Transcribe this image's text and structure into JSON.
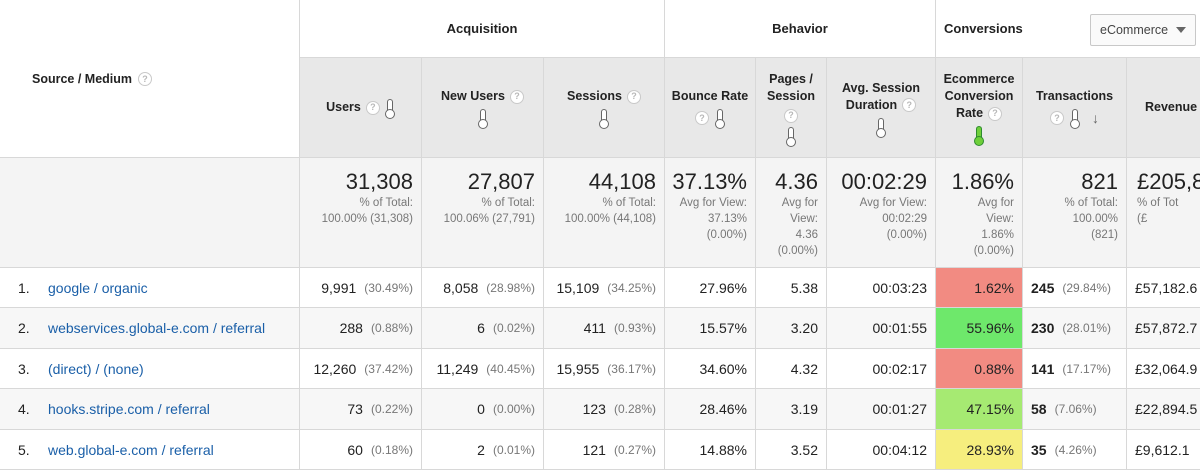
{
  "groups": {
    "acquisition": "Acquisition",
    "behavior": "Behavior",
    "conversions": "Conversions"
  },
  "conversion_dropdown": {
    "selected": "eCommerce"
  },
  "source_header": "Source / Medium",
  "columns": {
    "users": "Users",
    "new_users": "New Users",
    "sessions": "Sessions",
    "bounce_rate": "Bounce Rate",
    "pages_session": [
      "Pages /",
      "Session"
    ],
    "avg_session": [
      "Avg. Session",
      "Duration"
    ],
    "ecom_rate": [
      "Ecommerce",
      "Conversion",
      "Rate"
    ],
    "transactions": "Transactions",
    "revenue": "Revenue"
  },
  "totals": {
    "users": {
      "value": "31,308",
      "sub": [
        "% of Total:",
        "100.00% (31,308)"
      ]
    },
    "new_users": {
      "value": "27,807",
      "sub": [
        "% of Total:",
        "100.06% (27,791)"
      ]
    },
    "sessions": {
      "value": "44,108",
      "sub": [
        "% of Total:",
        "100.00% (44,108)"
      ]
    },
    "bounce_rate": {
      "value": "37.13%",
      "sub": [
        "Avg for View:",
        "37.13%",
        "(0.00%)"
      ]
    },
    "pages_session": {
      "value": "4.36",
      "sub": [
        "Avg for",
        "View:",
        "4.36",
        "(0.00%)"
      ]
    },
    "avg_session": {
      "value": "00:02:29",
      "sub": [
        "Avg for View:",
        "00:02:29",
        "(0.00%)"
      ]
    },
    "ecom_rate": {
      "value": "1.86%",
      "sub": [
        "Avg for",
        "View:",
        "1.86%",
        "(0.00%)"
      ]
    },
    "transactions": {
      "value": "821",
      "sub": [
        "% of Total:",
        "100.00%",
        "(821)"
      ]
    },
    "revenue": {
      "value": "£205,8",
      "sub": [
        "% of Tot",
        "(£"
      ]
    }
  },
  "rows": [
    {
      "num": "1.",
      "source": "google / organic",
      "users": "9,991",
      "users_pct": "(30.49%)",
      "new_users": "8,058",
      "new_users_pct": "(28.98%)",
      "sessions": "15,109",
      "sessions_pct": "(34.25%)",
      "bounce": "27.96%",
      "pages": "5.38",
      "duration": "00:03:23",
      "ecom": "1.62%",
      "ecom_color": "#f28b82",
      "transactions": "245",
      "transactions_pct": "(29.84%)",
      "revenue": "£57,182.6"
    },
    {
      "num": "2.",
      "source": "webservices.global-e.com / referral",
      "users": "288",
      "users_pct": "(0.88%)",
      "new_users": "6",
      "new_users_pct": "(0.02%)",
      "sessions": "411",
      "sessions_pct": "(0.93%)",
      "bounce": "15.57%",
      "pages": "3.20",
      "duration": "00:01:55",
      "ecom": "55.96%",
      "ecom_color": "#6ee86b",
      "transactions": "230",
      "transactions_pct": "(28.01%)",
      "revenue": "£57,872.7"
    },
    {
      "num": "3.",
      "source": "(direct) / (none)",
      "users": "12,260",
      "users_pct": "(37.42%)",
      "new_users": "11,249",
      "new_users_pct": "(40.45%)",
      "sessions": "15,955",
      "sessions_pct": "(36.17%)",
      "bounce": "34.60%",
      "pages": "4.32",
      "duration": "00:02:17",
      "ecom": "0.88%",
      "ecom_color": "#f28b82",
      "transactions": "141",
      "transactions_pct": "(17.17%)",
      "revenue": "£32,064.9"
    },
    {
      "num": "4.",
      "source": "hooks.stripe.com / referral",
      "users": "73",
      "users_pct": "(0.22%)",
      "new_users": "0",
      "new_users_pct": "(0.00%)",
      "sessions": "123",
      "sessions_pct": "(0.28%)",
      "bounce": "28.46%",
      "pages": "3.19",
      "duration": "00:01:27",
      "ecom": "47.15%",
      "ecom_color": "#a6ea72",
      "transactions": "58",
      "transactions_pct": "(7.06%)",
      "revenue": "£22,894.5"
    },
    {
      "num": "5.",
      "source": "web.global-e.com / referral",
      "users": "60",
      "users_pct": "(0.18%)",
      "new_users": "2",
      "new_users_pct": "(0.01%)",
      "sessions": "121",
      "sessions_pct": "(0.27%)",
      "bounce": "14.88%",
      "pages": "3.52",
      "duration": "00:04:12",
      "ecom": "28.93%",
      "ecom_color": "#f6ee7e",
      "transactions": "35",
      "transactions_pct": "(4.26%)",
      "revenue": "£9,612.1"
    }
  ]
}
